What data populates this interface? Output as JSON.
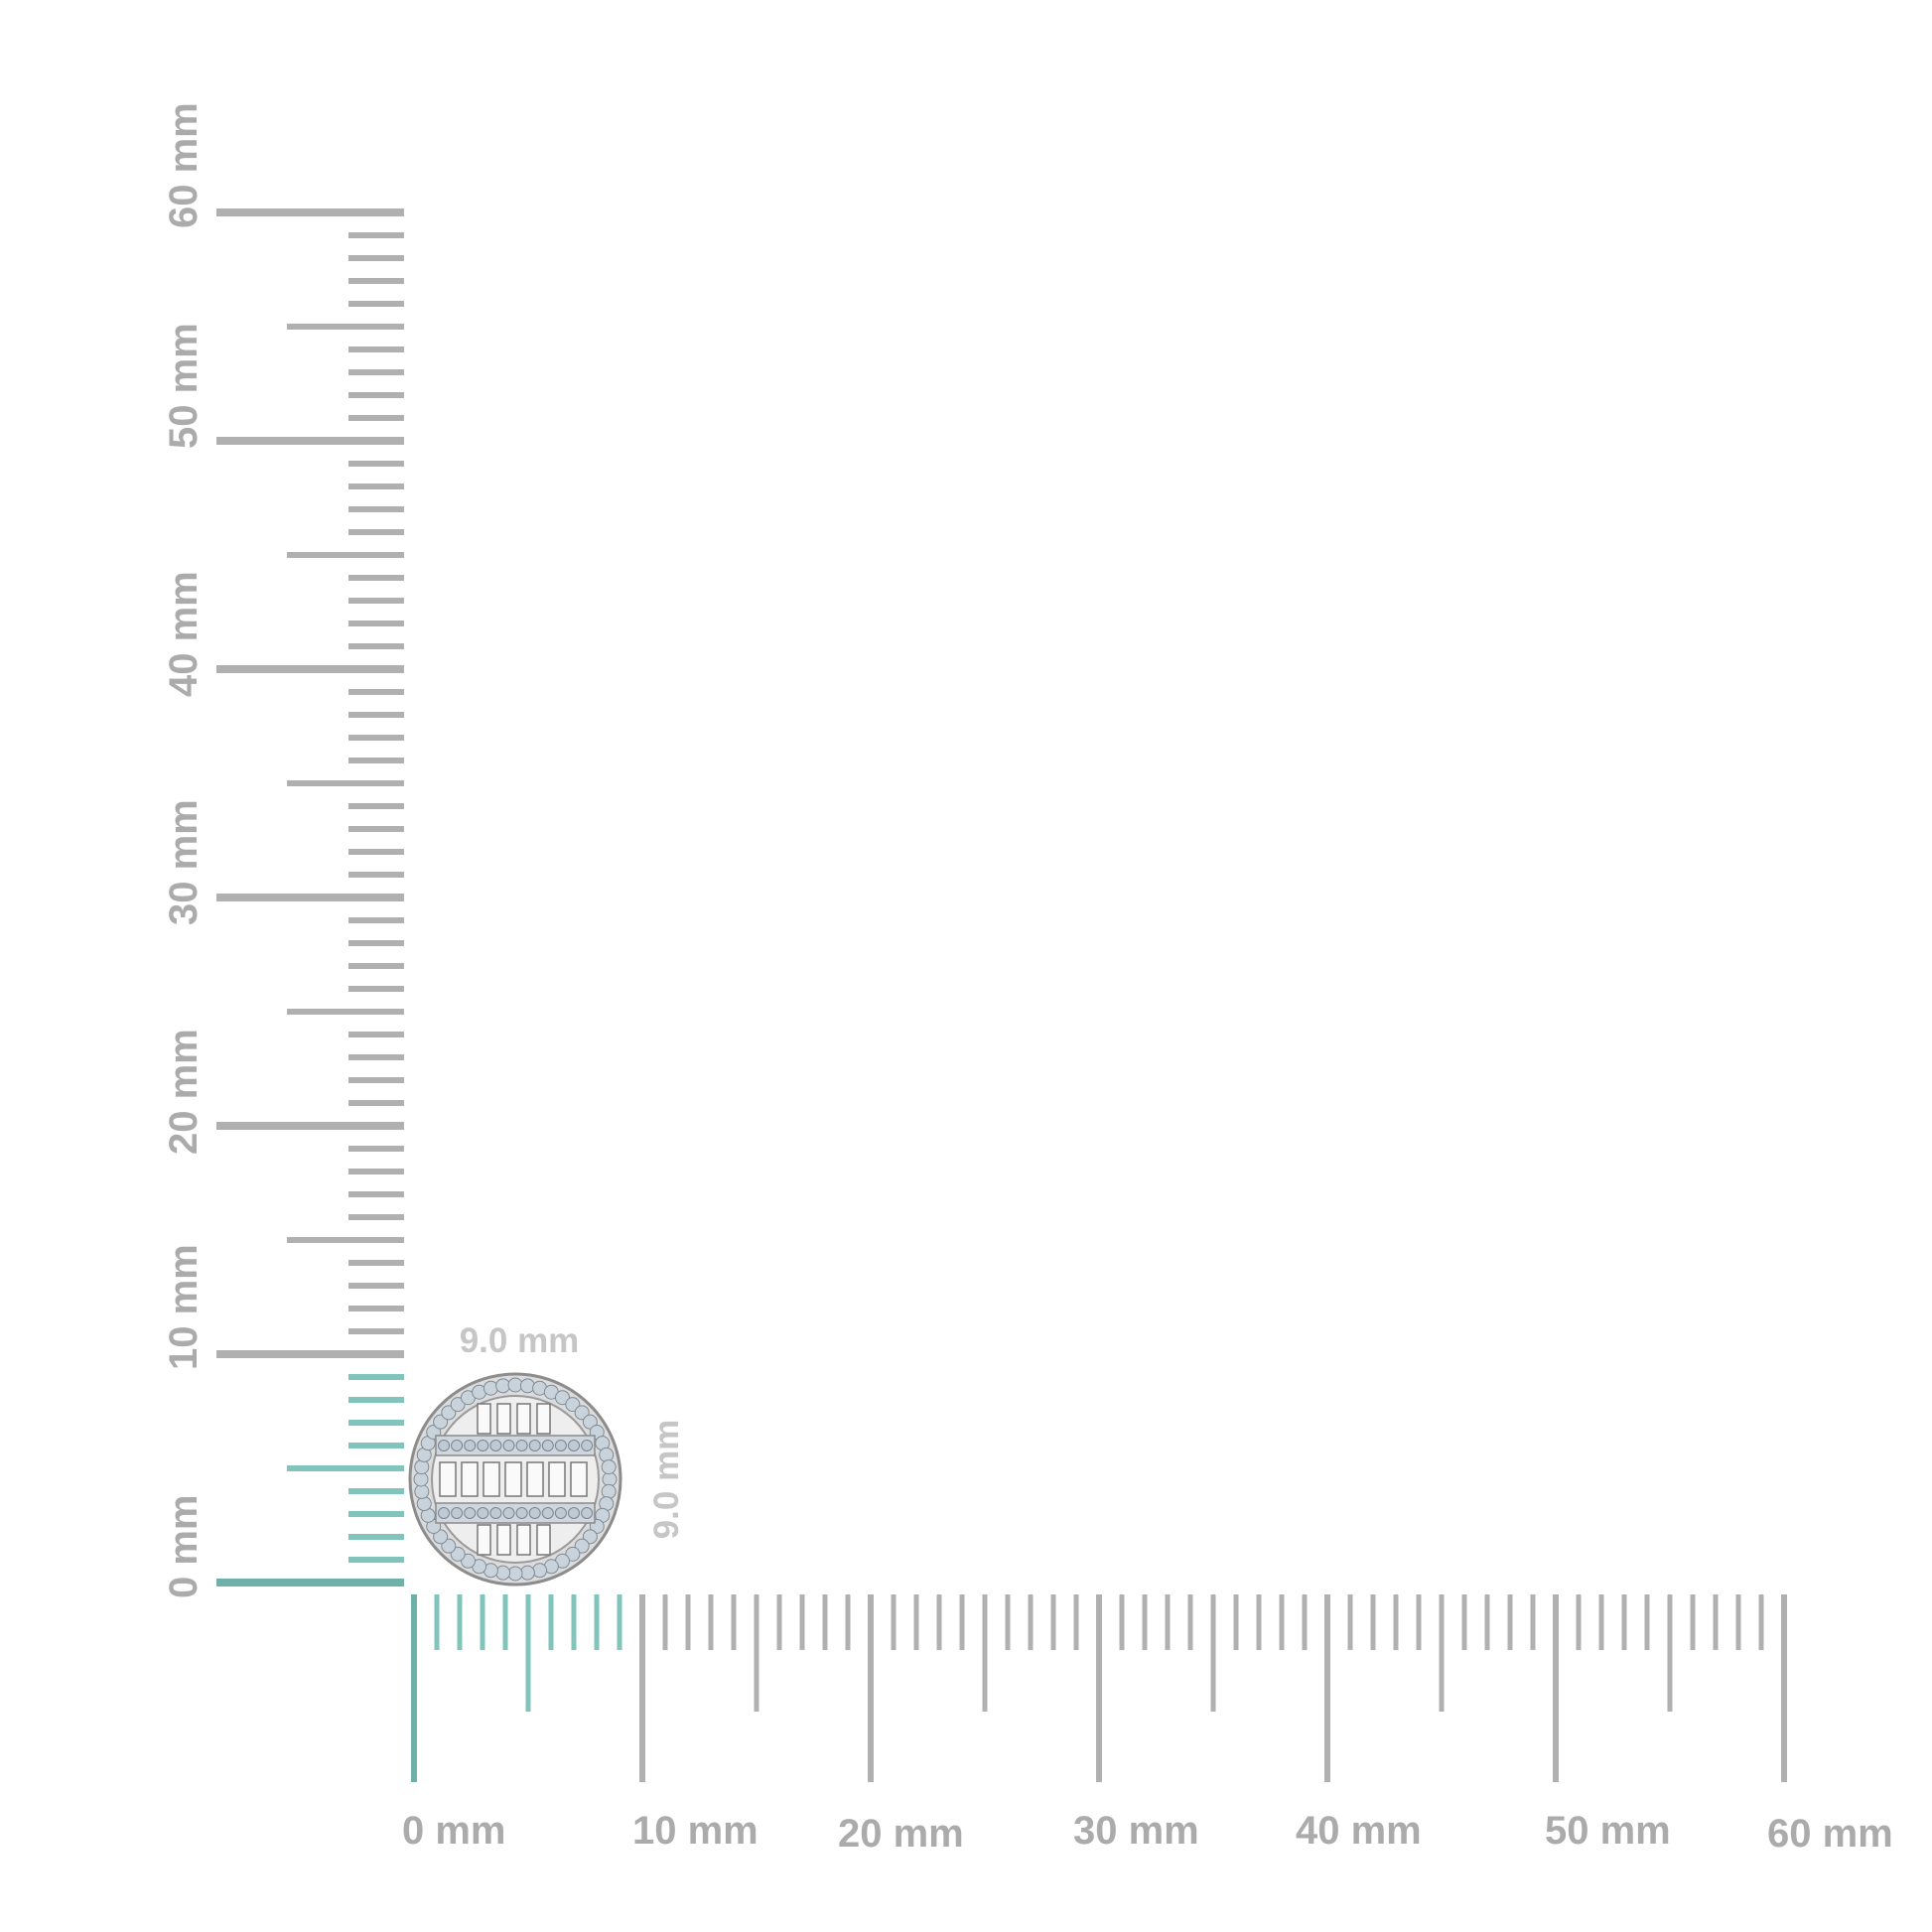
{
  "rulers": {
    "unit": "mm",
    "max_mm": 60,
    "highlight_mm": 9,
    "horizontal_labels": [
      "0 mm",
      "10 mm",
      "20 mm",
      "30 mm",
      "40 mm",
      "50 mm",
      "60 mm"
    ],
    "vertical_labels": [
      "0 mm",
      "10 mm",
      "20 mm",
      "30 mm",
      "40 mm",
      "50 mm",
      "60 mm"
    ]
  },
  "item": {
    "name_icon": "round-baguette-diamond-earring",
    "width_label": "9.0 mm",
    "height_label": "9.0 mm"
  },
  "colors": {
    "tick": "#b0b0b0",
    "highlight": "#80c4bb",
    "highlight_zero": "#6fb0a8",
    "label": "#ababab",
    "dimension_label": "#c6c6c6"
  }
}
